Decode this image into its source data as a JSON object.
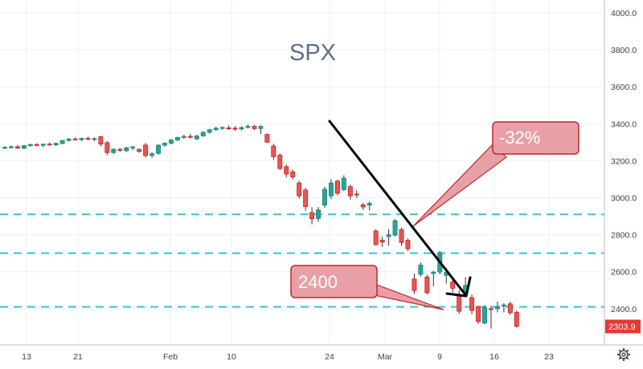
{
  "chart_data": {
    "type": "candlestick",
    "title": "SPX",
    "ylim": [
      2200,
      4050
    ],
    "y_ticks": [
      "4000.0",
      "3800.0",
      "3600.0",
      "3400.0",
      "3200.0",
      "3000.0",
      "2800.0",
      "2600.0",
      "2400.0"
    ],
    "x_ticks": [
      "13",
      "21",
      "Feb",
      "10",
      "24",
      "Mar",
      "9",
      "16",
      "23"
    ],
    "grid": true,
    "last_price": "2303.9",
    "last_value": 2303.9,
    "horizontal_levels": [
      2910,
      2700,
      2410
    ],
    "candles": [
      {
        "o": 3270,
        "h": 3278,
        "l": 3262,
        "c": 3273
      },
      {
        "o": 3273,
        "h": 3282,
        "l": 3266,
        "c": 3276
      },
      {
        "o": 3276,
        "h": 3286,
        "l": 3264,
        "c": 3268
      },
      {
        "o": 3268,
        "h": 3285,
        "l": 3262,
        "c": 3282
      },
      {
        "o": 3282,
        "h": 3292,
        "l": 3276,
        "c": 3288
      },
      {
        "o": 3288,
        "h": 3295,
        "l": 3278,
        "c": 3283
      },
      {
        "o": 3283,
        "h": 3292,
        "l": 3274,
        "c": 3290
      },
      {
        "o": 3290,
        "h": 3300,
        "l": 3282,
        "c": 3286
      },
      {
        "o": 3286,
        "h": 3298,
        "l": 3280,
        "c": 3294
      },
      {
        "o": 3294,
        "h": 3312,
        "l": 3288,
        "c": 3310
      },
      {
        "o": 3310,
        "h": 3322,
        "l": 3304,
        "c": 3318
      },
      {
        "o": 3318,
        "h": 3326,
        "l": 3310,
        "c": 3314
      },
      {
        "o": 3314,
        "h": 3325,
        "l": 3306,
        "c": 3321
      },
      {
        "o": 3321,
        "h": 3330,
        "l": 3312,
        "c": 3317
      },
      {
        "o": 3317,
        "h": 3326,
        "l": 3306,
        "c": 3320
      },
      {
        "o": 3330,
        "h": 3335,
        "l": 3278,
        "c": 3290
      },
      {
        "o": 3298,
        "h": 3306,
        "l": 3230,
        "c": 3244
      },
      {
        "o": 3244,
        "h": 3268,
        "l": 3236,
        "c": 3262
      },
      {
        "o": 3262,
        "h": 3270,
        "l": 3248,
        "c": 3256
      },
      {
        "o": 3254,
        "h": 3276,
        "l": 3248,
        "c": 3270
      },
      {
        "o": 3270,
        "h": 3280,
        "l": 3258,
        "c": 3275
      },
      {
        "o": 3262,
        "h": 3266,
        "l": 3244,
        "c": 3250
      },
      {
        "o": 3285,
        "h": 3296,
        "l": 3218,
        "c": 3228
      },
      {
        "o": 3228,
        "h": 3246,
        "l": 3216,
        "c": 3238
      },
      {
        "o": 3240,
        "h": 3290,
        "l": 3232,
        "c": 3284
      },
      {
        "o": 3284,
        "h": 3300,
        "l": 3276,
        "c": 3295
      },
      {
        "o": 3295,
        "h": 3318,
        "l": 3288,
        "c": 3312
      },
      {
        "o": 3312,
        "h": 3330,
        "l": 3306,
        "c": 3326
      },
      {
        "o": 3326,
        "h": 3340,
        "l": 3318,
        "c": 3332
      },
      {
        "o": 3332,
        "h": 3345,
        "l": 3320,
        "c": 3328
      },
      {
        "o": 3318,
        "h": 3340,
        "l": 3312,
        "c": 3334
      },
      {
        "o": 3334,
        "h": 3360,
        "l": 3330,
        "c": 3354
      },
      {
        "o": 3354,
        "h": 3372,
        "l": 3346,
        "c": 3368
      },
      {
        "o": 3368,
        "h": 3384,
        "l": 3362,
        "c": 3376
      },
      {
        "o": 3376,
        "h": 3386,
        "l": 3368,
        "c": 3380
      },
      {
        "o": 3378,
        "h": 3390,
        "l": 3368,
        "c": 3374
      },
      {
        "o": 3376,
        "h": 3388,
        "l": 3362,
        "c": 3372
      },
      {
        "o": 3372,
        "h": 3386,
        "l": 3364,
        "c": 3380
      },
      {
        "o": 3384,
        "h": 3396,
        "l": 3374,
        "c": 3386
      },
      {
        "o": 3386,
        "h": 3394,
        "l": 3366,
        "c": 3374
      },
      {
        "o": 3374,
        "h": 3392,
        "l": 3344,
        "c": 3386
      },
      {
        "o": 3342,
        "h": 3348,
        "l": 3296,
        "c": 3300
      },
      {
        "o": 3280,
        "h": 3292,
        "l": 3204,
        "c": 3222
      },
      {
        "o": 3230,
        "h": 3240,
        "l": 3150,
        "c": 3158
      },
      {
        "o": 3168,
        "h": 3180,
        "l": 3110,
        "c": 3128
      },
      {
        "o": 3140,
        "h": 3152,
        "l": 3098,
        "c": 3112
      },
      {
        "o": 3080,
        "h": 3092,
        "l": 2996,
        "c": 3010
      },
      {
        "o": 3042,
        "h": 3054,
        "l": 2930,
        "c": 2952
      },
      {
        "o": 2920,
        "h": 2948,
        "l": 2856,
        "c": 2886
      },
      {
        "o": 2888,
        "h": 2950,
        "l": 2870,
        "c": 2934
      },
      {
        "o": 2960,
        "h": 3060,
        "l": 2946,
        "c": 3046
      },
      {
        "o": 3010,
        "h": 3100,
        "l": 2992,
        "c": 3080
      },
      {
        "o": 3090,
        "h": 3098,
        "l": 3012,
        "c": 3024
      },
      {
        "o": 3044,
        "h": 3122,
        "l": 3036,
        "c": 3106
      },
      {
        "o": 3060,
        "h": 3072,
        "l": 2990,
        "c": 3010
      },
      {
        "o": 3020,
        "h": 3040,
        "l": 2998,
        "c": 3018
      },
      {
        "o": 2962,
        "h": 2972,
        "l": 2934,
        "c": 2950
      },
      {
        "o": 2960,
        "h": 2980,
        "l": 2930,
        "c": 2970
      },
      {
        "o": 2820,
        "h": 2830,
        "l": 2742,
        "c": 2746
      },
      {
        "o": 2770,
        "h": 2790,
        "l": 2734,
        "c": 2760
      },
      {
        "o": 2790,
        "h": 2830,
        "l": 2740,
        "c": 2800
      },
      {
        "o": 2798,
        "h": 2884,
        "l": 2790,
        "c": 2876
      },
      {
        "o": 2828,
        "h": 2838,
        "l": 2740,
        "c": 2758
      },
      {
        "o": 2770,
        "h": 2780,
        "l": 2710,
        "c": 2724
      },
      {
        "o": 2560,
        "h": 2590,
        "l": 2480,
        "c": 2498
      },
      {
        "o": 2586,
        "h": 2650,
        "l": 2574,
        "c": 2636
      },
      {
        "o": 2572,
        "h": 2584,
        "l": 2478,
        "c": 2486
      },
      {
        "o": 2590,
        "h": 2605,
        "l": 2520,
        "c": 2598
      },
      {
        "o": 2598,
        "h": 2712,
        "l": 2586,
        "c": 2704
      },
      {
        "o": 2580,
        "h": 2620,
        "l": 2536,
        "c": 2596
      },
      {
        "o": 2544,
        "h": 2560,
        "l": 2488,
        "c": 2510
      },
      {
        "o": 2474,
        "h": 2500,
        "l": 2372,
        "c": 2386
      },
      {
        "o": 2482,
        "h": 2570,
        "l": 2470,
        "c": 2526
      },
      {
        "o": 2460,
        "h": 2476,
        "l": 2370,
        "c": 2390
      },
      {
        "o": 2412,
        "h": 2416,
        "l": 2318,
        "c": 2330
      },
      {
        "o": 2322,
        "h": 2420,
        "l": 2316,
        "c": 2406
      },
      {
        "o": 2400,
        "h": 2416,
        "l": 2292,
        "c": 2396
      },
      {
        "o": 2400,
        "h": 2438,
        "l": 2380,
        "c": 2412
      },
      {
        "o": 2414,
        "h": 2430,
        "l": 2380,
        "c": 2420
      },
      {
        "o": 2426,
        "h": 2438,
        "l": 2366,
        "c": 2378
      },
      {
        "o": 2380,
        "h": 2390,
        "l": 2298,
        "c": 2304
      }
    ],
    "annotations": [
      {
        "label": "-32%"
      },
      {
        "label": "2400"
      }
    ]
  }
}
